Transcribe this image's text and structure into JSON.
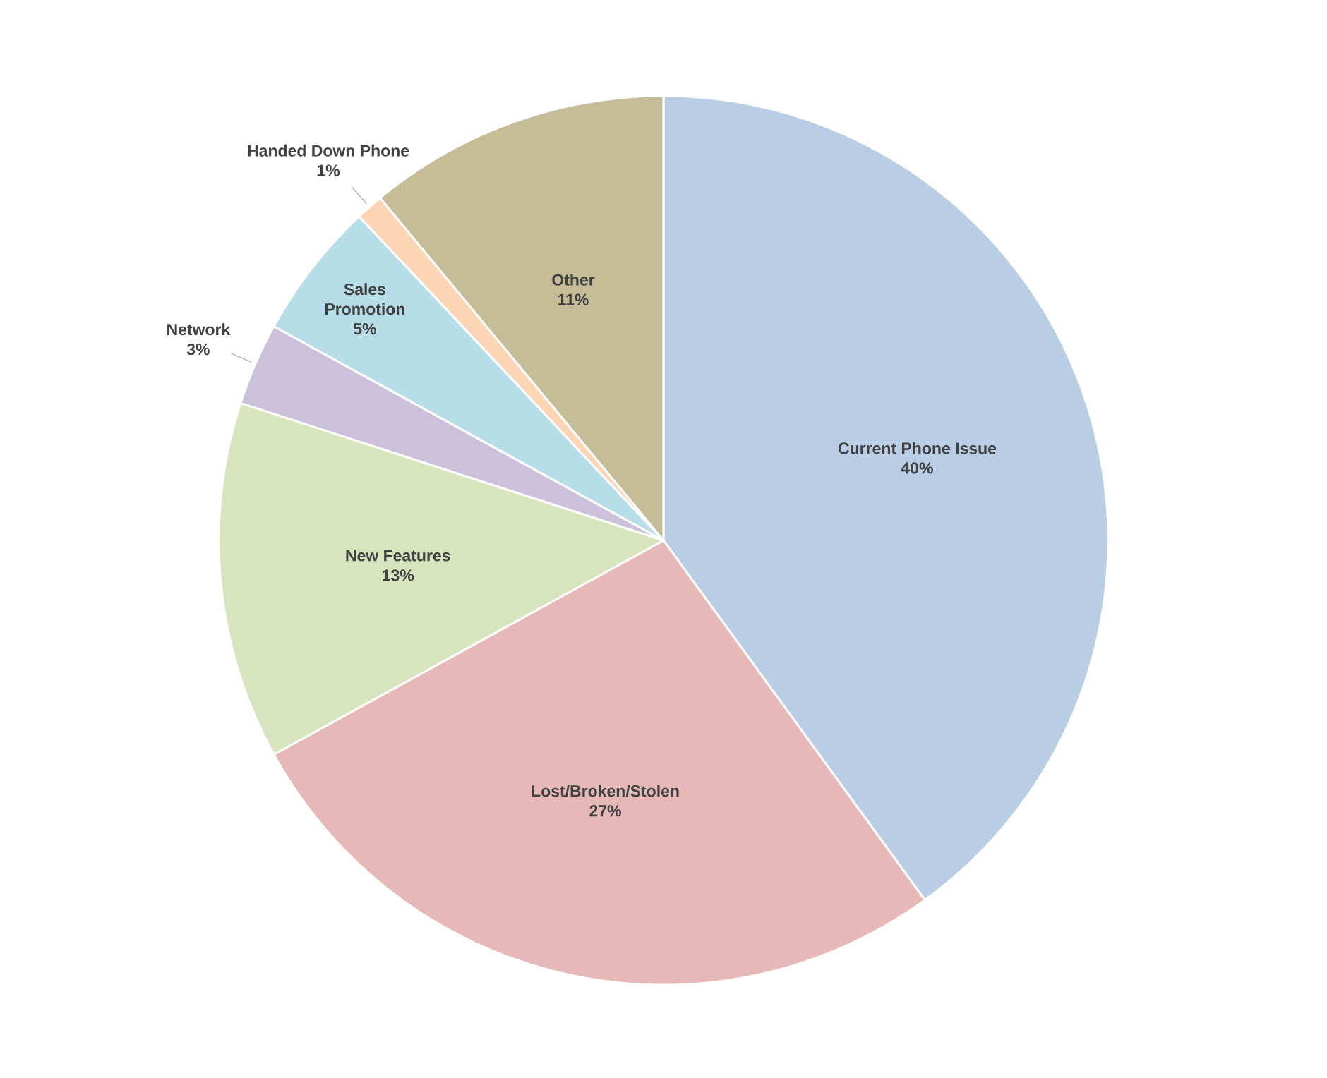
{
  "chart_data": {
    "type": "pie",
    "categories": [
      "Current Phone Issue",
      "Lost/Broken/Stolen",
      "New Features",
      "Network",
      "Sales Promotion",
      "Handed Down Phone",
      "Other"
    ],
    "values": [
      40,
      27,
      13,
      3,
      5,
      1,
      11
    ],
    "colors": [
      "#b9cde4",
      "#e6b9b8",
      "#d7e4bd",
      "#ccc1da",
      "#b7dde8",
      "#fcd5b5",
      "#c4bd97"
    ],
    "value_labels": [
      "40%",
      "27%",
      "13%",
      "3%",
      "5%",
      "1%",
      "11%"
    ]
  }
}
